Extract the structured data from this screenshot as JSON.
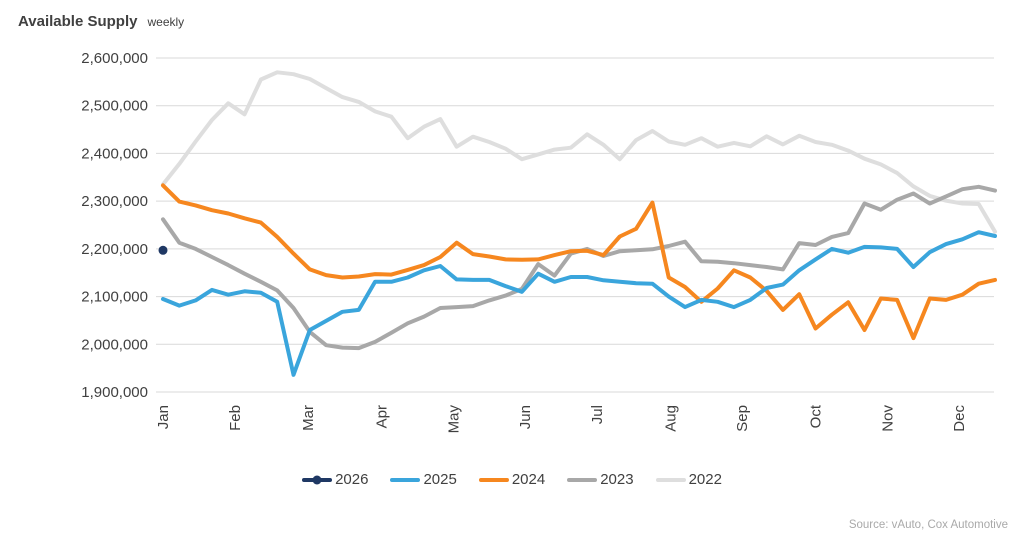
{
  "header": {
    "title": "Available Supply",
    "subtitle": "weekly"
  },
  "source": {
    "text": "Source: vAuto, Cox Automotive"
  },
  "colors": {
    "text": "#404040",
    "gridline": "#D9D9D9",
    "source_text": "#A9A9A9",
    "series_2026": "#1F3864",
    "series_2025": "#3AA5DC",
    "series_2024": "#F6871F",
    "series_2023": "#A8A8A8",
    "series_2022": "#DEDEDE"
  },
  "chart_data": {
    "type": "line",
    "title": "Available Supply",
    "subtitle": "weekly",
    "x_unit": "week-of-year",
    "weeks": 52,
    "grid": "horizontal-only",
    "legend_position": "bottom",
    "x_axis": {
      "ticks": [
        {
          "label": "Jan",
          "week": 1
        },
        {
          "label": "Feb",
          "week": 5.4
        },
        {
          "label": "Mar",
          "week": 9.9
        },
        {
          "label": "Apr",
          "week": 14.4
        },
        {
          "label": "May",
          "week": 18.8
        },
        {
          "label": "Jun",
          "week": 23.2
        },
        {
          "label": "Jul",
          "week": 27.6
        },
        {
          "label": "Aug",
          "week": 32.1
        },
        {
          "label": "Sep",
          "week": 36.5
        },
        {
          "label": "Oct",
          "week": 41
        },
        {
          "label": "Nov",
          "week": 45.4
        },
        {
          "label": "Dec",
          "week": 49.8
        }
      ]
    },
    "y_axis": {
      "min": 1900000,
      "max": 2600000,
      "step": 100000,
      "tick_labels": [
        "2,600,000",
        "2,500,000",
        "2,400,000",
        "2,300,000",
        "2,200,000",
        "2,100,000",
        "2,000,000",
        "1,900,000"
      ]
    },
    "series": [
      {
        "name": "2026",
        "color": "#1F3864",
        "marker": "dot",
        "values": [
          2197000
        ]
      },
      {
        "name": "2025",
        "color": "#3AA5DC",
        "marker": "none",
        "values": [
          2095000,
          2081000,
          2092000,
          2114000,
          2104000,
          2111000,
          2108000,
          2089000,
          1936000,
          2030000,
          2049000,
          2068000,
          2072000,
          2131000,
          2131000,
          2140000,
          2155000,
          2164000,
          2136000,
          2135000,
          2135000,
          2122000,
          2110000,
          2148000,
          2131000,
          2141000,
          2141000,
          2134000,
          2131000,
          2128000,
          2127000,
          2100000,
          2078000,
          2093000,
          2089000,
          2078000,
          2093000,
          2118000,
          2125000,
          2155000,
          2178000,
          2200000,
          2192000,
          2204000,
          2203000,
          2200000,
          2162000,
          2193000,
          2210000,
          2220000,
          2235000,
          2227000
        ]
      },
      {
        "name": "2024",
        "color": "#F6871F",
        "marker": "none",
        "values": [
          2333000,
          2299000,
          2291000,
          2281000,
          2274000,
          2264000,
          2255000,
          2225000,
          2190000,
          2157000,
          2145000,
          2140000,
          2142000,
          2147000,
          2146000,
          2156000,
          2166000,
          2183000,
          2213000,
          2189000,
          2184000,
          2178000,
          2177000,
          2178000,
          2187000,
          2195000,
          2196000,
          2187000,
          2226000,
          2242000,
          2297000,
          2140000,
          2120000,
          2089000,
          2117000,
          2155000,
          2140000,
          2112000,
          2072000,
          2105000,
          2033000,
          2062000,
          2088000,
          2030000,
          2096000,
          2093000,
          2013000,
          2096000,
          2093000,
          2104000,
          2127000,
          2135000
        ]
      },
      {
        "name": "2023",
        "color": "#A8A8A8",
        "marker": "none",
        "values": [
          2262000,
          2213000,
          2200000,
          2183000,
          2166000,
          2148000,
          2131000,
          2113000,
          2076000,
          2026000,
          1998000,
          1993000,
          1992000,
          2005000,
          2024000,
          2044000,
          2058000,
          2076000,
          2078000,
          2080000,
          2092000,
          2102000,
          2116000,
          2168000,
          2144000,
          2190000,
          2200000,
          2185000,
          2195000,
          2197000,
          2199000,
          2206000,
          2215000,
          2174000,
          2173000,
          2170000,
          2166000,
          2162000,
          2157000,
          2212000,
          2208000,
          2225000,
          2233000,
          2295000,
          2282000,
          2303000,
          2316000,
          2295000,
          2310000,
          2325000,
          2330000,
          2322000
        ]
      },
      {
        "name": "2022",
        "color": "#DEDEDE",
        "marker": "none",
        "values": [
          2335000,
          2378000,
          2425000,
          2470000,
          2505000,
          2482000,
          2555000,
          2570000,
          2566000,
          2556000,
          2537000,
          2518000,
          2508000,
          2488000,
          2477000,
          2432000,
          2456000,
          2472000,
          2414000,
          2435000,
          2424000,
          2410000,
          2388000,
          2398000,
          2408000,
          2412000,
          2440000,
          2418000,
          2388000,
          2428000,
          2447000,
          2425000,
          2418000,
          2432000,
          2414000,
          2422000,
          2415000,
          2436000,
          2419000,
          2437000,
          2424000,
          2418000,
          2406000,
          2389000,
          2377000,
          2359000,
          2331000,
          2311000,
          2301000,
          2295000,
          2294000,
          2236000
        ]
      }
    ]
  }
}
